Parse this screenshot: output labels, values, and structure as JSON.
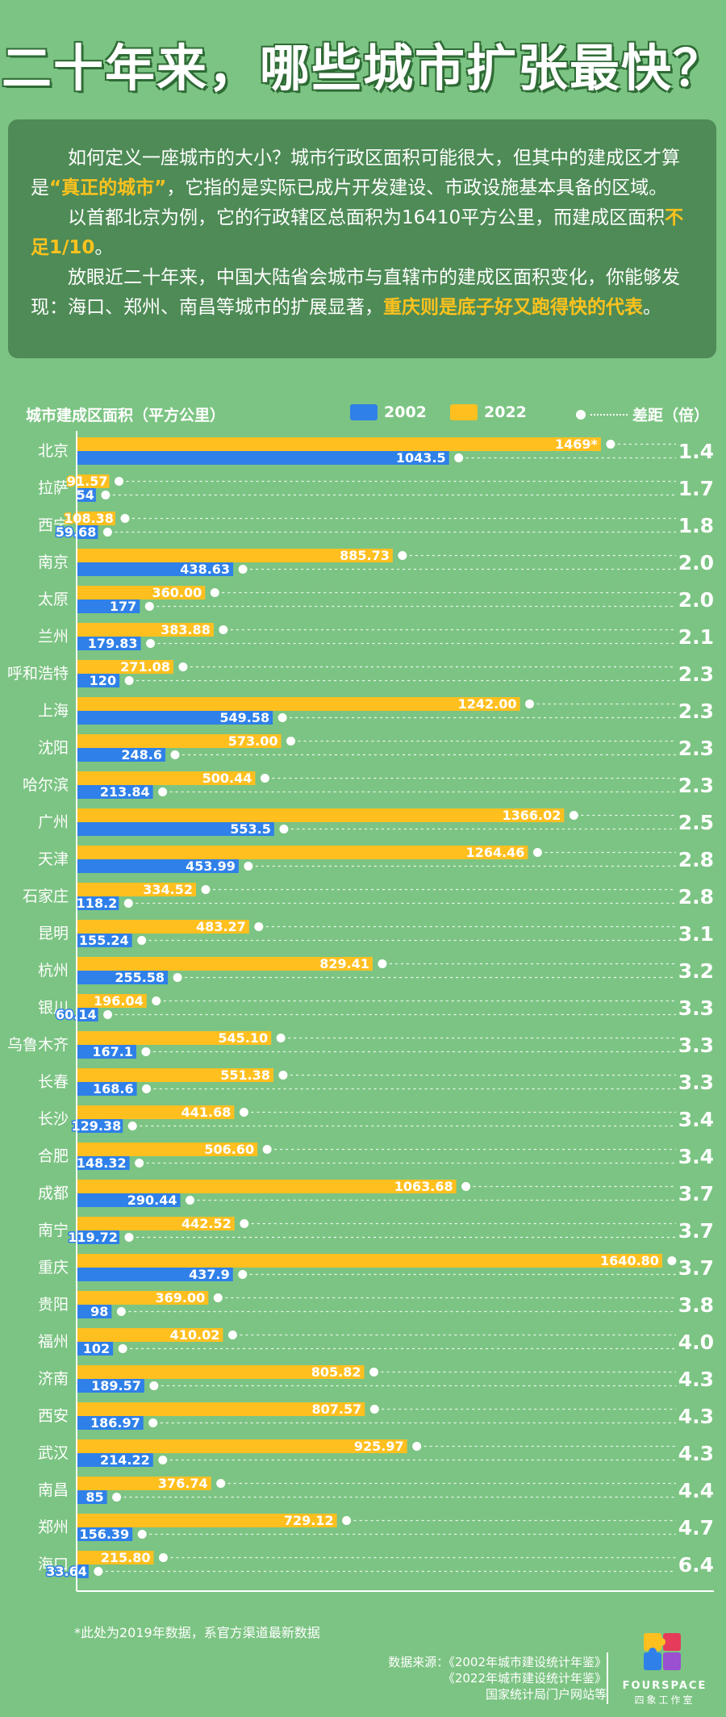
{
  "title": "二十年来，哪些城市扩张最快？",
  "intro": {
    "p1_a": "如何定义一座城市的大小？城市行政区面积可能很大，但其中的建成区才算是",
    "p1_hl": "“真正的城市”",
    "p1_b": "，它指的是实际已成片开发建设、市政设施基本具备的区域。",
    "p2_a": "以首都北京为例，它的行政辖区总面积为16410平方公里，而建成区面积",
    "p2_hl": "不足1/10",
    "p2_b": "。",
    "p3_a": "放眼近二十年来，中国大陆省会城市与直辖市的建成区面积变化，你能够发现：海口、郑州、南昌等城市的扩展显著，",
    "p3_hl": "重庆则是底子好又跑得快的代表",
    "p3_b": "。"
  },
  "legend": {
    "ytitle": "城市建成区面积（平方公里）",
    "s2002": "2002",
    "s2022": "2022",
    "gap": "差距（倍）"
  },
  "colors": {
    "background": "#7cc483",
    "bar2002": "#2f80e8",
    "bar2022": "#ffbf1f",
    "text": "#ffffff",
    "panel": "#4e8b56"
  },
  "chart_data": {
    "type": "bar",
    "orientation": "horizontal",
    "series": [
      {
        "name": "2002",
        "key": "v2002"
      },
      {
        "name": "2022",
        "key": "v2022"
      }
    ],
    "rows": [
      {
        "city": "北京",
        "v2022": 1469,
        "label2022": "1469*",
        "v2002": 1043.5,
        "label2002": "1043.5",
        "ratio": "1.4"
      },
      {
        "city": "拉萨",
        "v2022": 91.57,
        "label2022": "91.57",
        "v2002": 54,
        "label2002": "54",
        "ratio": "1.7"
      },
      {
        "city": "西宁",
        "v2022": 108.38,
        "label2022": "108.38",
        "v2002": 59.68,
        "label2002": "59.68",
        "ratio": "1.8"
      },
      {
        "city": "南京",
        "v2022": 885.73,
        "label2022": "885.73",
        "v2002": 438.63,
        "label2002": "438.63",
        "ratio": "2.0"
      },
      {
        "city": "太原",
        "v2022": 360.0,
        "label2022": "360.00",
        "v2002": 177,
        "label2002": "177",
        "ratio": "2.0"
      },
      {
        "city": "兰州",
        "v2022": 383.88,
        "label2022": "383.88",
        "v2002": 179.83,
        "label2002": "179.83",
        "ratio": "2.1"
      },
      {
        "city": "呼和浩特",
        "v2022": 271.08,
        "label2022": "271.08",
        "v2002": 120,
        "label2002": "120",
        "ratio": "2.3"
      },
      {
        "city": "上海",
        "v2022": 1242.0,
        "label2022": "1242.00",
        "v2002": 549.58,
        "label2002": "549.58",
        "ratio": "2.3"
      },
      {
        "city": "沈阳",
        "v2022": 573.0,
        "label2022": "573.00",
        "v2002": 248.6,
        "label2002": "248.6",
        "ratio": "2.3"
      },
      {
        "city": "哈尔滨",
        "v2022": 500.44,
        "label2022": "500.44",
        "v2002": 213.84,
        "label2002": "213.84",
        "ratio": "2.3"
      },
      {
        "city": "广州",
        "v2022": 1366.02,
        "label2022": "1366.02",
        "v2002": 553.5,
        "label2002": "553.5",
        "ratio": "2.5"
      },
      {
        "city": "天津",
        "v2022": 1264.46,
        "label2022": "1264.46",
        "v2002": 453.99,
        "label2002": "453.99",
        "ratio": "2.8"
      },
      {
        "city": "石家庄",
        "v2022": 334.52,
        "label2022": "334.52",
        "v2002": 118.2,
        "label2002": "118.2",
        "ratio": "2.8"
      },
      {
        "city": "昆明",
        "v2022": 483.27,
        "label2022": "483.27",
        "v2002": 155.24,
        "label2002": "155.24",
        "ratio": "3.1"
      },
      {
        "city": "杭州",
        "v2022": 829.41,
        "label2022": "829.41",
        "v2002": 255.58,
        "label2002": "255.58",
        "ratio": "3.2"
      },
      {
        "city": "银川",
        "v2022": 196.04,
        "label2022": "196.04",
        "v2002": 60.14,
        "label2002": "60.14",
        "ratio": "3.3"
      },
      {
        "city": "乌鲁木齐",
        "v2022": 545.1,
        "label2022": "545.10",
        "v2002": 167.1,
        "label2002": "167.1",
        "ratio": "3.3"
      },
      {
        "city": "长春",
        "v2022": 551.38,
        "label2022": "551.38",
        "v2002": 168.6,
        "label2002": "168.6",
        "ratio": "3.3"
      },
      {
        "city": "长沙",
        "v2022": 441.68,
        "label2022": "441.68",
        "v2002": 129.38,
        "label2002": "129.38",
        "ratio": "3.4"
      },
      {
        "city": "合肥",
        "v2022": 506.6,
        "label2022": "506.60",
        "v2002": 148.32,
        "label2002": "148.32",
        "ratio": "3.4"
      },
      {
        "city": "成都",
        "v2022": 1063.68,
        "label2022": "1063.68",
        "v2002": 290.44,
        "label2002": "290.44",
        "ratio": "3.7"
      },
      {
        "city": "南宁",
        "v2022": 442.52,
        "label2022": "442.52",
        "v2002": 119.72,
        "label2002": "119.72",
        "ratio": "3.7"
      },
      {
        "city": "重庆",
        "v2022": 1640.8,
        "label2022": "1640.80",
        "v2002": 437.9,
        "label2002": "437.9",
        "ratio": "3.7"
      },
      {
        "city": "贵阳",
        "v2022": 369.0,
        "label2022": "369.00",
        "v2002": 98,
        "label2002": "98",
        "ratio": "3.8"
      },
      {
        "city": "福州",
        "v2022": 410.02,
        "label2022": "410.02",
        "v2002": 102,
        "label2002": "102",
        "ratio": "4.0"
      },
      {
        "city": "济南",
        "v2022": 805.82,
        "label2022": "805.82",
        "v2002": 189.57,
        "label2002": "189.57",
        "ratio": "4.3"
      },
      {
        "city": "西安",
        "v2022": 807.57,
        "label2022": "807.57",
        "v2002": 186.97,
        "label2002": "186.97",
        "ratio": "4.3"
      },
      {
        "city": "武汉",
        "v2022": 925.97,
        "label2022": "925.97",
        "v2002": 214.22,
        "label2002": "214.22",
        "ratio": "4.3"
      },
      {
        "city": "南昌",
        "v2022": 376.74,
        "label2022": "376.74",
        "v2002": 85,
        "label2002": "85",
        "ratio": "4.4"
      },
      {
        "city": "郑州",
        "v2022": 729.12,
        "label2022": "729.12",
        "v2002": 156.39,
        "label2002": "156.39",
        "ratio": "4.7"
      },
      {
        "city": "海口",
        "v2022": 215.8,
        "label2022": "215.80",
        "v2002": 33.64,
        "label2002": "33.64",
        "ratio": "6.4"
      }
    ],
    "xlim": [
      0,
      1650
    ],
    "grid": false,
    "legend_position": "top"
  },
  "footnote": "*此处为2019年数据，系官方渠道最新数据",
  "sources": {
    "label": "数据来源：",
    "line1": "《2002年城市建设统计年鉴》",
    "line2": "《2022年城市建设统计年鉴》",
    "line3": "国家统计局门户网站等"
  },
  "logo": {
    "name": "FOURSPACE",
    "sub": "四象工作室"
  }
}
